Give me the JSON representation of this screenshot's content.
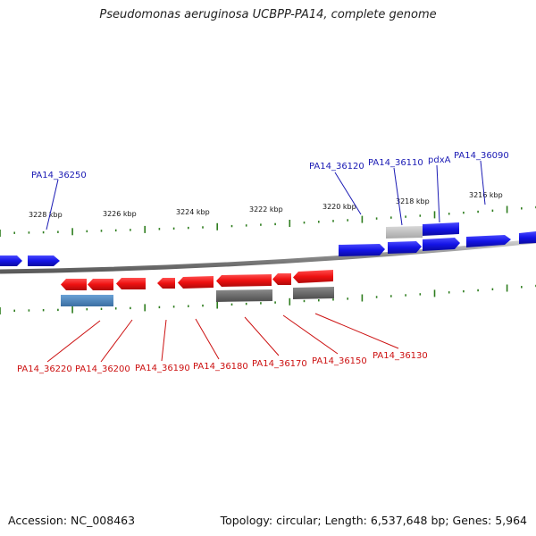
{
  "title": "Pseudomonas aeruginosa UCBPP-PA14, complete genome",
  "scale_labels": [
    "3228 kbp",
    "3226 kbp",
    "3224 kbp",
    "3222 kbp",
    "3220 kbp",
    "3218 kbp",
    "3216 kbp"
  ],
  "top_gene_labels": [
    "PA14_36250",
    "PA14_36120",
    "PA14_36110",
    "pdxA",
    "PA14_36090"
  ],
  "bottom_gene_labels": [
    "PA14_36220",
    "PA14_36200",
    "PA14_36190",
    "PA14_36180",
    "PA14_36170",
    "PA14_36150",
    "PA14_36130"
  ],
  "footer": {
    "accession": "Accession: NC_008463",
    "summary": "Topology: circular; Length: 6,537,648 bp; Genes: 5,964"
  },
  "colors": {
    "forward_gene": "#1414e6",
    "reverse_gene": "#ee1111",
    "forward_label": "#1a1ab4",
    "reverse_label": "#cc1010",
    "tick": "#2e7d1e",
    "backbone": "#8a8a8a",
    "pseudo_gray": "#bdbdbd",
    "dark_gray": "#6a6a6a",
    "steel_blue": "#4a86c0"
  }
}
